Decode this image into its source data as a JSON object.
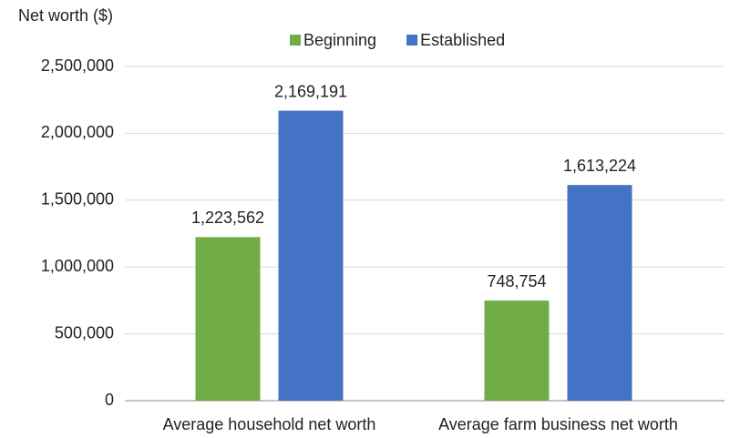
{
  "chart_data": {
    "type": "bar",
    "y_axis_label": "Net worth ($)",
    "categories": [
      "Average household net worth",
      "Average farm business net worth"
    ],
    "series": [
      {
        "name": "Beginning",
        "color": "#70ad47",
        "values": [
          1223562,
          748754
        ],
        "value_labels": [
          "1,223,562",
          "748,754"
        ]
      },
      {
        "name": "Established",
        "color": "#4472c4",
        "values": [
          2169191,
          1613224
        ],
        "value_labels": [
          "2,169,191",
          "1,613,224"
        ]
      }
    ],
    "ylim": [
      0,
      2500000
    ],
    "yticks": [
      0,
      {
        "value": 500000,
        "label": "500,000"
      },
      {
        "value": 1000000,
        "label": "1,000,000"
      },
      {
        "value": 1500000,
        "label": "1,500,000"
      },
      {
        "value": 2000000,
        "label": "2,000,000"
      },
      {
        "value": 2500000,
        "label": "2,500,000"
      }
    ],
    "grid": true,
    "legend": "top"
  }
}
